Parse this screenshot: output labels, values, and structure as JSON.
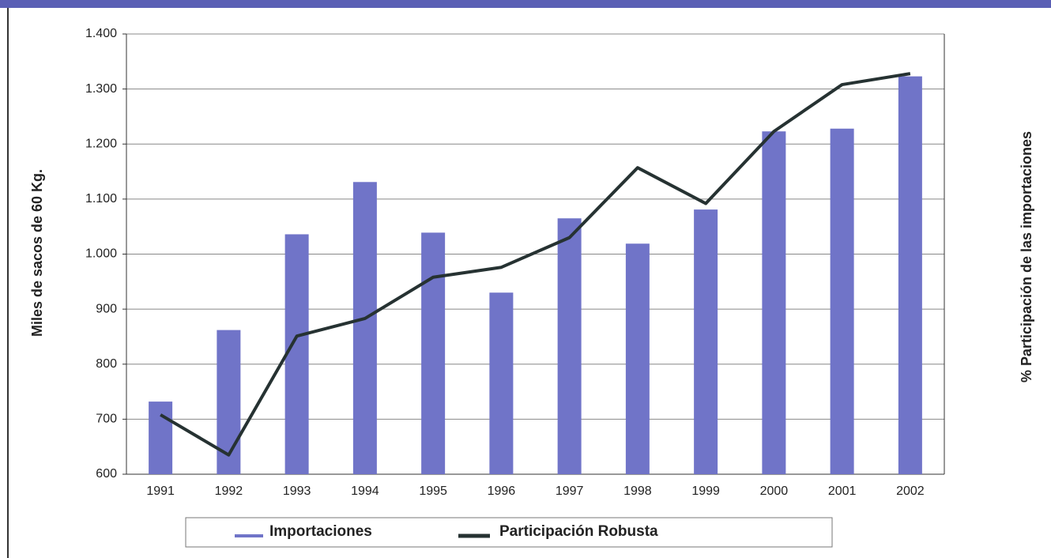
{
  "chart_data": {
    "type": "bar-line",
    "y_label": "Miles de sacos de 60 Kg.",
    "y2_label": "% Participación de las importaciones",
    "categories": [
      "1991",
      "1992",
      "1993",
      "1994",
      "1995",
      "1996",
      "1997",
      "1998",
      "1999",
      "2000",
      "2001",
      "2002"
    ],
    "series": [
      {
        "name": "Importaciones",
        "type": "bar",
        "color": "#7074c8",
        "values": [
          732,
          862,
          1036,
          1131,
          1039,
          930,
          1065,
          1019,
          1081,
          1223,
          1228,
          1323
        ]
      },
      {
        "name": "Participación Robusta",
        "type": "line",
        "color": "#263232",
        "values": [
          708,
          635,
          851,
          883,
          958,
          976,
          1030,
          1157,
          1092,
          1223,
          1308,
          1328
        ]
      }
    ],
    "ylim": [
      600,
      1400
    ],
    "yticks": [
      600,
      700,
      800,
      900,
      {
        "value": 1000,
        "label": "1.000"
      },
      {
        "value": 1100,
        "label": "1.100"
      },
      {
        "value": 1200,
        "label": "1.200"
      },
      {
        "value": 1300,
        "label": "1.300"
      },
      {
        "value": 1400,
        "label": "1.400"
      }
    ],
    "grid": true,
    "legend": "bottom"
  }
}
